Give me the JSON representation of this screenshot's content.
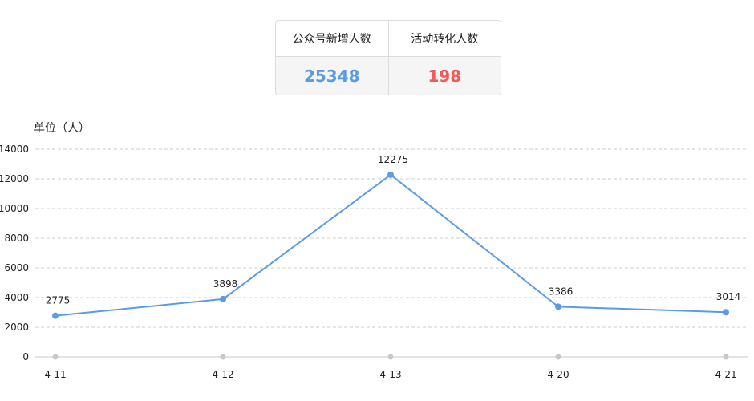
{
  "stats": {
    "new_followers_label": "公众号新增人数",
    "new_followers_value": "25348",
    "conversions_label": "活动转化人数",
    "conversions_value": "198"
  },
  "colors": {
    "new_followers_value": "#5b9be6",
    "conversions_value": "#ef5b5b",
    "line": "#5b9be6"
  },
  "unit_label": "单位（人）",
  "chart_data": {
    "type": "line",
    "categories": [
      "4-11",
      "4-12",
      "4-13",
      "4-20",
      "4-21"
    ],
    "series": [
      {
        "values": [
          2775,
          3898,
          12275,
          3386,
          3014
        ]
      }
    ],
    "ylim": [
      0,
      14000
    ],
    "yticks": [
      0,
      2000,
      4000,
      6000,
      8000,
      10000,
      12000,
      14000
    ],
    "grid": true,
    "data_labels": true
  }
}
